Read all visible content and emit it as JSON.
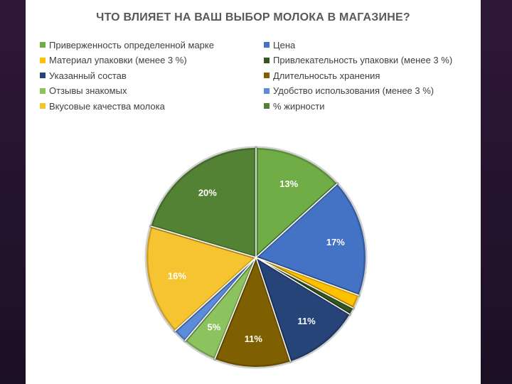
{
  "chart_data": {
    "type": "pie",
    "title": "ЧТО ВЛИЯЕТ НА ВАШ ВЫБОР МОЛОКА В МАГАЗИНЕ?",
    "legend_position": "top",
    "slices": [
      {
        "name": "Приверженность определенной марке",
        "value": 13,
        "label": "13%",
        "color": "#70ad47"
      },
      {
        "name": "Цена",
        "value": 17,
        "label": "17%",
        "color": "#4472c4"
      },
      {
        "name": "Материал упаковки (менее 3 %)",
        "value": 2,
        "label": "",
        "color": "#ffc000"
      },
      {
        "name": "Привлекательность упаковки (менее 3 %)",
        "value": 1,
        "label": "",
        "color": "#375623"
      },
      {
        "name": "Указанный состав",
        "value": 11,
        "label": "11%",
        "color": "#264478"
      },
      {
        "name": "Длительносьть хранения",
        "value": 11,
        "label": "11%",
        "color": "#7f6000"
      },
      {
        "name": "Отзывы знакомых",
        "value": 5,
        "label": "5%",
        "color": "#8dc35f"
      },
      {
        "name": "Удобство использования (менее 3 %)",
        "value": 2,
        "label": "",
        "color": "#5b8bd9"
      },
      {
        "name": "Вкусовые качества молока",
        "value": 16,
        "label": "16%",
        "color": "#f7c431"
      },
      {
        "name": "% жирности",
        "value": 20,
        "label": "20%",
        "color": "#548235"
      }
    ]
  }
}
